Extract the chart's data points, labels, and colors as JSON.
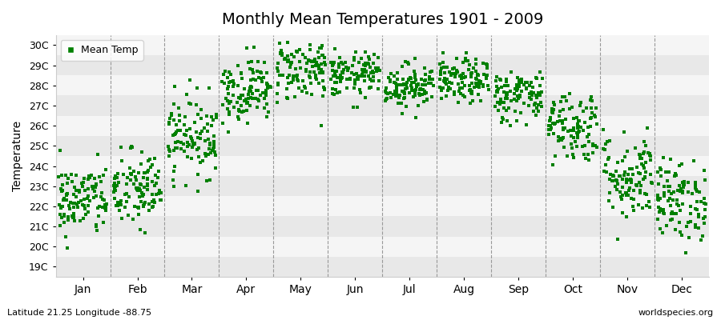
{
  "title": "Monthly Mean Temperatures 1901 - 2009",
  "ylabel": "Temperature",
  "xlabel_labels": [
    "Jan",
    "Feb",
    "Mar",
    "Apr",
    "May",
    "Jun",
    "Jul",
    "Aug",
    "Sep",
    "Oct",
    "Nov",
    "Dec"
  ],
  "ytick_labels": [
    "19C",
    "20C",
    "21C",
    "22C",
    "23C",
    "24C",
    "25C",
    "26C",
    "27C",
    "28C",
    "29C",
    "30C"
  ],
  "ytick_values": [
    19,
    20,
    21,
    22,
    23,
    24,
    25,
    26,
    27,
    28,
    29,
    30
  ],
  "ylim": [
    18.5,
    30.5
  ],
  "marker_color": "#008000",
  "marker_size": 3.5,
  "background_color": "#ffffff",
  "plot_bg_color": "#f0f0f0",
  "legend_label": "Mean Temp",
  "subtitle": "Latitude 21.25 Longitude -88.75",
  "watermark": "worldspecies.org",
  "monthly_means": [
    22.3,
    22.8,
    25.5,
    27.8,
    28.8,
    28.5,
    28.0,
    28.2,
    27.5,
    26.0,
    23.5,
    22.3
  ],
  "monthly_stds": [
    0.9,
    1.0,
    1.0,
    0.8,
    0.8,
    0.55,
    0.55,
    0.55,
    0.65,
    0.9,
    1.1,
    1.0
  ],
  "n_years": 109,
  "seed": 42,
  "hband_colors": [
    "#e8e8e8",
    "#f5f5f5"
  ],
  "dashed_line_color": "#999999"
}
